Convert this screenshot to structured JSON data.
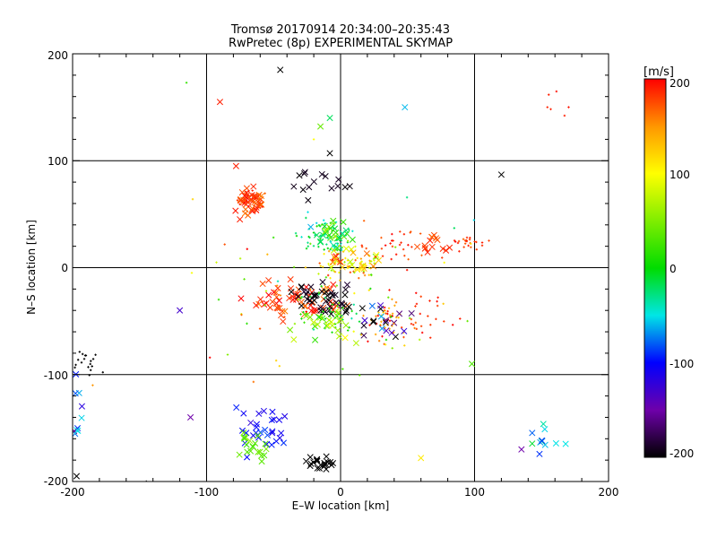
{
  "chart_data": {
    "type": "scatter",
    "title": "Tromsø 20170914 20:34:00–20:35:43",
    "subtitle": "RwPretec (8p) EXPERIMENTAL SKYMAP",
    "xlabel": "E–W location [km]",
    "ylabel": "N–S location [km]",
    "xlim": [
      -200,
      200
    ],
    "ylim": [
      -200,
      200
    ],
    "x_ticks": [
      "-200",
      "-100",
      "0",
      "100",
      "200"
    ],
    "y_ticks": [
      "-200",
      "-100",
      "0",
      "100",
      "200"
    ],
    "grid": true,
    "colorbar": {
      "label": "[m/s]",
      "range": [
        -200,
        200
      ],
      "ticks": [
        "200",
        "100",
        "0",
        "-100",
        "-200"
      ],
      "colormap": "black-purple-blue-cyan-green-yellow-red",
      "placement": "right"
    },
    "marker_legend": {
      "cross": "x",
      "dot": "+"
    },
    "clusters": [
      {
        "cx": -68,
        "cy": 62,
        "sx": 9,
        "sy": 9,
        "n": 45,
        "v": 180,
        "vs": 15,
        "m": "x"
      },
      {
        "cx": -68,
        "cy": 62,
        "sx": 10,
        "sy": 8,
        "n": 20,
        "v": 185,
        "vs": 10,
        "m": "+"
      },
      {
        "cx": 95,
        "cy": 23,
        "sx": 9,
        "sy": 5,
        "n": 25,
        "v": 185,
        "vs": 10,
        "m": "+"
      },
      {
        "cx": 72,
        "cy": 22,
        "sx": 12,
        "sy": 6,
        "n": 15,
        "v": 180,
        "vs": 10,
        "m": "x"
      },
      {
        "cx": -12,
        "cy": 30,
        "sx": 12,
        "sy": 12,
        "n": 55,
        "v": -15,
        "vs": 35,
        "m": "+"
      },
      {
        "cx": -5,
        "cy": 30,
        "sx": 12,
        "sy": 9,
        "n": 30,
        "v": 0,
        "vs": 45,
        "m": "x"
      },
      {
        "cx": 5,
        "cy": 2,
        "sx": 18,
        "sy": 10,
        "n": 60,
        "v": 110,
        "vs": 60,
        "m": "+"
      },
      {
        "cx": 10,
        "cy": 5,
        "sx": 16,
        "sy": 10,
        "n": 25,
        "v": 130,
        "vs": 50,
        "m": "x"
      },
      {
        "cx": 35,
        "cy": 20,
        "sx": 25,
        "sy": 15,
        "n": 30,
        "v": 185,
        "vs": 15,
        "m": "+"
      },
      {
        "cx": -30,
        "cy": -30,
        "sx": 25,
        "sy": 12,
        "n": 60,
        "v": 185,
        "vs": 20,
        "m": "x"
      },
      {
        "cx": -15,
        "cy": -30,
        "sx": 18,
        "sy": 12,
        "n": 45,
        "v": -195,
        "vs": 8,
        "m": "x"
      },
      {
        "cx": -5,
        "cy": -45,
        "sx": 25,
        "sy": 15,
        "n": 50,
        "v": 10,
        "vs": 35,
        "m": "+"
      },
      {
        "cx": -10,
        "cy": -55,
        "sx": 20,
        "sy": 10,
        "n": 25,
        "v": 60,
        "vs": 30,
        "m": "x"
      },
      {
        "cx": 35,
        "cy": -50,
        "sx": 15,
        "sy": 14,
        "n": 55,
        "v": 160,
        "vs": 50,
        "m": "+"
      },
      {
        "cx": 35,
        "cy": -50,
        "sx": 12,
        "sy": 10,
        "n": 20,
        "v": -130,
        "vs": 80,
        "m": "x"
      },
      {
        "cx": 65,
        "cy": -45,
        "sx": 12,
        "sy": 18,
        "n": 20,
        "v": 190,
        "vs": 10,
        "m": "+"
      },
      {
        "cx": -55,
        "cy": -150,
        "sx": 13,
        "sy": 16,
        "n": 30,
        "v": -105,
        "vs": 15,
        "m": "x"
      },
      {
        "cx": -65,
        "cy": -170,
        "sx": 10,
        "sy": 12,
        "n": 20,
        "v": 35,
        "vs": 15,
        "m": "x"
      },
      {
        "cx": -15,
        "cy": -183,
        "sx": 6,
        "sy": 6,
        "n": 22,
        "v": -200,
        "vs": 0,
        "m": "x"
      },
      {
        "cx": 152,
        "cy": -162,
        "sx": 8,
        "sy": 12,
        "n": 12,
        "v": -40,
        "vs": 40,
        "m": "x"
      },
      {
        "cx": -190,
        "cy": -90,
        "sx": 8,
        "sy": 12,
        "n": 18,
        "v": -200,
        "vs": 0,
        "m": "+"
      },
      {
        "cx": -195,
        "cy": -150,
        "sx": 5,
        "sy": 25,
        "n": 10,
        "v": -80,
        "vs": 40,
        "m": "x"
      },
      {
        "cx": 165,
        "cy": 155,
        "sx": 15,
        "sy": 10,
        "n": 6,
        "v": 190,
        "vs": 5,
        "m": "+"
      },
      {
        "cx": 0,
        "cy": -20,
        "sx": 80,
        "sy": 60,
        "n": 70,
        "v": 100,
        "vs": 100,
        "m": "+"
      },
      {
        "cx": -20,
        "cy": 80,
        "sx": 20,
        "sy": 15,
        "n": 15,
        "v": -195,
        "vs": 5,
        "m": "x"
      }
    ],
    "points": [
      {
        "x": -45,
        "y": 185,
        "v": -200,
        "m": "x"
      },
      {
        "x": -90,
        "y": 155,
        "v": 190,
        "m": "x"
      },
      {
        "x": -115,
        "y": 173,
        "v": 20,
        "m": "+"
      },
      {
        "x": 48,
        "y": 150,
        "v": -60,
        "m": "x"
      },
      {
        "x": 120,
        "y": 87,
        "v": -200,
        "m": "x"
      },
      {
        "x": -78,
        "y": 95,
        "v": 190,
        "m": "x"
      },
      {
        "x": -8,
        "y": 107,
        "v": -200,
        "m": "x"
      },
      {
        "x": -8,
        "y": 140,
        "v": -20,
        "m": "x"
      },
      {
        "x": -15,
        "y": 132,
        "v": 40,
        "m": "x"
      },
      {
        "x": -20,
        "y": 120,
        "v": 100,
        "m": "+"
      },
      {
        "x": 98,
        "y": -90,
        "v": 30,
        "m": "x"
      },
      {
        "x": 60,
        "y": -178,
        "v": 110,
        "m": "x"
      },
      {
        "x": -112,
        "y": -140,
        "v": -150,
        "m": "x"
      },
      {
        "x": -120,
        "y": -40,
        "v": -130,
        "m": "x"
      },
      {
        "x": -185,
        "y": -110,
        "v": 150,
        "m": "+"
      },
      {
        "x": 135,
        "y": -170,
        "v": -150,
        "m": "x"
      },
      {
        "x": -145,
        "y": -200,
        "v": -200,
        "m": "+"
      },
      {
        "x": -197,
        "y": -195,
        "v": -200,
        "m": "x"
      }
    ]
  }
}
